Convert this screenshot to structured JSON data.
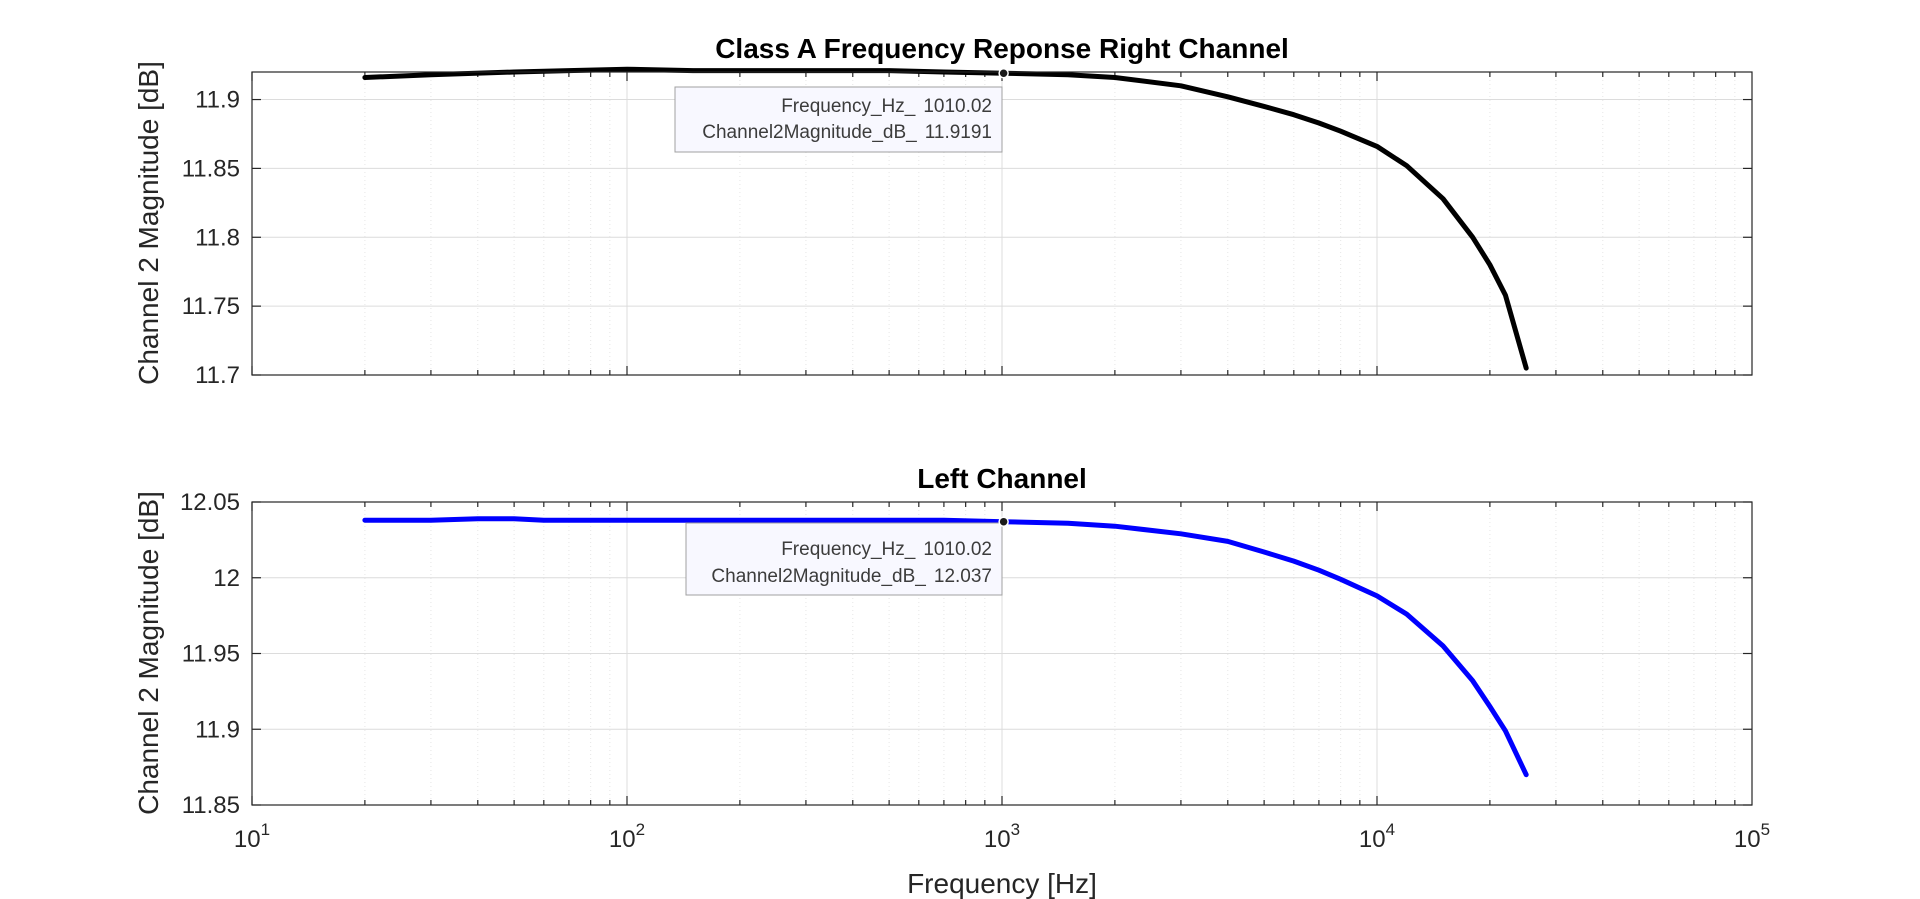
{
  "chart_data": [
    {
      "type": "line",
      "title": "Class A Frequency Reponse Right Channel",
      "xlabel": "",
      "ylabel": "Channel 2 Magnitude [dB]",
      "xscale": "log",
      "xlim": [
        10,
        100000
      ],
      "ylim": [
        11.7,
        11.92
      ],
      "yticks": [
        11.7,
        11.75,
        11.8,
        11.85,
        11.9
      ],
      "grid": true,
      "series": [
        {
          "color": "#000000",
          "x": [
            20,
            30,
            50,
            70,
            100,
            150,
            200,
            300,
            500,
            700,
            1010.02,
            1500,
            2000,
            3000,
            4000,
            5000,
            6000,
            7000,
            8000,
            10000,
            12000,
            15000,
            18000,
            20000,
            22000,
            25000
          ],
          "y": [
            11.916,
            11.918,
            11.92,
            11.921,
            11.922,
            11.921,
            11.921,
            11.921,
            11.921,
            11.92,
            11.9191,
            11.918,
            11.916,
            11.91,
            11.902,
            11.895,
            11.889,
            11.883,
            11.877,
            11.866,
            11.852,
            11.828,
            11.8,
            11.78,
            11.758,
            11.705
          ]
        }
      ],
      "datatip": {
        "x_label": "Frequency_Hz_",
        "x_value": "1010.02",
        "y_label": "Channel2Magnitude_dB_",
        "y_value": "11.9191",
        "x": 1010.02,
        "y": 11.9191
      }
    },
    {
      "type": "line",
      "title": "Left Channel",
      "xlabel": "Frequency [Hz]",
      "ylabel": "Channel 2 Magnitude [dB]",
      "xscale": "log",
      "xlim": [
        10,
        100000
      ],
      "ylim": [
        11.85,
        12.05
      ],
      "yticks": [
        11.85,
        11.9,
        11.95,
        12,
        12.05
      ],
      "xticks": [
        {
          "base": "10",
          "exp": "1",
          "value": 10
        },
        {
          "base": "10",
          "exp": "2",
          "value": 100
        },
        {
          "base": "10",
          "exp": "3",
          "value": 1000
        },
        {
          "base": "10",
          "exp": "4",
          "value": 10000
        },
        {
          "base": "10",
          "exp": "5",
          "value": 100000
        }
      ],
      "grid": true,
      "series": [
        {
          "color": "#0000ff",
          "x": [
            20,
            30,
            40,
            50,
            60,
            80,
            100,
            150,
            200,
            300,
            500,
            700,
            1010.02,
            1500,
            2000,
            3000,
            4000,
            5000,
            6000,
            7000,
            8000,
            10000,
            12000,
            15000,
            18000,
            20000,
            22000,
            25000
          ],
          "y": [
            12.038,
            12.038,
            12.039,
            12.039,
            12.038,
            12.038,
            12.038,
            12.038,
            12.038,
            12.038,
            12.038,
            12.038,
            12.037,
            12.036,
            12.034,
            12.029,
            12.024,
            12.017,
            12.011,
            12.005,
            11.999,
            11.988,
            11.976,
            11.955,
            11.932,
            11.915,
            11.899,
            11.87
          ]
        }
      ],
      "datatip": {
        "x_label": "Frequency_Hz_",
        "x_value": "1010.02",
        "y_label": "Channel2Magnitude_dB_",
        "y_value": "12.037",
        "x": 1010.02,
        "y": 12.037
      }
    }
  ]
}
